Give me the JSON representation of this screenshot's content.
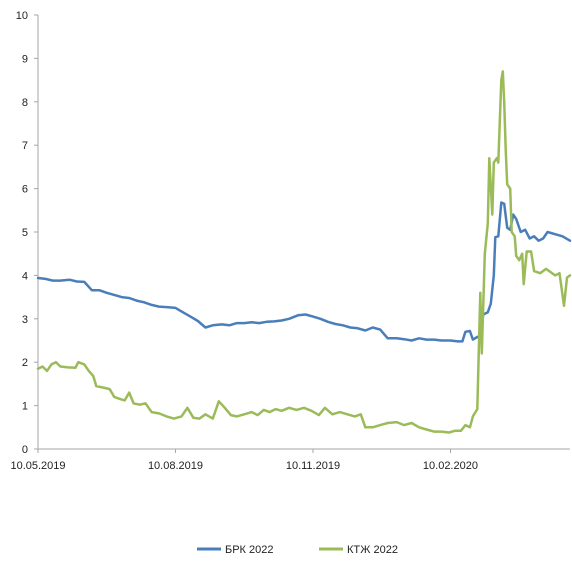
{
  "chart_data": {
    "type": "line",
    "title": "",
    "xlabel": "",
    "ylabel": "",
    "ylim": [
      0,
      10
    ],
    "yticks": [
      "0",
      "1",
      "2",
      "3",
      "4",
      "5",
      "6",
      "7",
      "8",
      "9",
      "10"
    ],
    "x_range": [
      "2019-05-10",
      "2020-04-30"
    ],
    "xticks": [
      {
        "date": "2019-05-10",
        "label": "10.05.2019"
      },
      {
        "date": "2019-08-10",
        "label": "10.08.2019"
      },
      {
        "date": "2019-11-10",
        "label": "10.11.2019"
      },
      {
        "date": "2020-02-10",
        "label": "10.02.2020"
      }
    ],
    "grid": false,
    "legend_position": "bottom",
    "series": [
      {
        "name": "БРК 2022",
        "color": "#4a7ebb",
        "points": [
          [
            "2019-05-10",
            3.94
          ],
          [
            "2019-05-15",
            3.92
          ],
          [
            "2019-05-20",
            3.88
          ],
          [
            "2019-05-25",
            3.88
          ],
          [
            "2019-05-31",
            3.9
          ],
          [
            "2019-06-05",
            3.86
          ],
          [
            "2019-06-10",
            3.85
          ],
          [
            "2019-06-15",
            3.66
          ],
          [
            "2019-06-20",
            3.66
          ],
          [
            "2019-06-25",
            3.6
          ],
          [
            "2019-06-30",
            3.55
          ],
          [
            "2019-07-05",
            3.5
          ],
          [
            "2019-07-10",
            3.48
          ],
          [
            "2019-07-15",
            3.42
          ],
          [
            "2019-07-20",
            3.38
          ],
          [
            "2019-07-25",
            3.32
          ],
          [
            "2019-07-30",
            3.28
          ],
          [
            "2019-08-04",
            3.27
          ],
          [
            "2019-08-10",
            3.25
          ],
          [
            "2019-08-15",
            3.15
          ],
          [
            "2019-08-20",
            3.05
          ],
          [
            "2019-08-25",
            2.95
          ],
          [
            "2019-08-30",
            2.8
          ],
          [
            "2019-09-04",
            2.85
          ],
          [
            "2019-09-10",
            2.87
          ],
          [
            "2019-09-15",
            2.85
          ],
          [
            "2019-09-20",
            2.9
          ],
          [
            "2019-09-25",
            2.9
          ],
          [
            "2019-09-30",
            2.92
          ],
          [
            "2019-10-05",
            2.9
          ],
          [
            "2019-10-10",
            2.93
          ],
          [
            "2019-10-15",
            2.94
          ],
          [
            "2019-10-20",
            2.96
          ],
          [
            "2019-10-25",
            3.0
          ],
          [
            "2019-10-31",
            3.08
          ],
          [
            "2019-11-05",
            3.1
          ],
          [
            "2019-11-10",
            3.05
          ],
          [
            "2019-11-15",
            3.0
          ],
          [
            "2019-11-20",
            2.93
          ],
          [
            "2019-11-25",
            2.88
          ],
          [
            "2019-11-30",
            2.85
          ],
          [
            "2019-12-05",
            2.8
          ],
          [
            "2019-12-10",
            2.78
          ],
          [
            "2019-12-15",
            2.73
          ],
          [
            "2019-12-20",
            2.8
          ],
          [
            "2019-12-25",
            2.75
          ],
          [
            "2019-12-30",
            2.55
          ],
          [
            "2020-01-05",
            2.55
          ],
          [
            "2020-01-10",
            2.53
          ],
          [
            "2020-01-15",
            2.5
          ],
          [
            "2020-01-20",
            2.55
          ],
          [
            "2020-01-25",
            2.52
          ],
          [
            "2020-01-30",
            2.52
          ],
          [
            "2020-02-04",
            2.5
          ],
          [
            "2020-02-10",
            2.5
          ],
          [
            "2020-02-15",
            2.48
          ],
          [
            "2020-02-18",
            2.48
          ],
          [
            "2020-02-20",
            2.7
          ],
          [
            "2020-02-23",
            2.72
          ],
          [
            "2020-02-25",
            2.52
          ],
          [
            "2020-02-28",
            2.58
          ],
          [
            "2020-03-01",
            2.6
          ],
          [
            "2020-03-03",
            3.1
          ],
          [
            "2020-03-06",
            3.15
          ],
          [
            "2020-03-08",
            3.35
          ],
          [
            "2020-03-10",
            4.0
          ],
          [
            "2020-03-11",
            4.88
          ],
          [
            "2020-03-13",
            4.9
          ],
          [
            "2020-03-15",
            5.68
          ],
          [
            "2020-03-17",
            5.65
          ],
          [
            "2020-03-19",
            5.1
          ],
          [
            "2020-03-21",
            5.05
          ],
          [
            "2020-03-23",
            5.4
          ],
          [
            "2020-03-25",
            5.3
          ],
          [
            "2020-03-28",
            5.0
          ],
          [
            "2020-03-31",
            5.05
          ],
          [
            "2020-04-03",
            4.85
          ],
          [
            "2020-04-06",
            4.9
          ],
          [
            "2020-04-09",
            4.8
          ],
          [
            "2020-04-12",
            4.85
          ],
          [
            "2020-04-15",
            5.0
          ],
          [
            "2020-04-20",
            4.95
          ],
          [
            "2020-04-25",
            4.9
          ],
          [
            "2020-04-30",
            4.8
          ]
        ]
      },
      {
        "name": "КТЖ 2022",
        "color": "#9bbb59",
        "points": [
          [
            "2019-05-10",
            1.85
          ],
          [
            "2019-05-13",
            1.9
          ],
          [
            "2019-05-16",
            1.8
          ],
          [
            "2019-05-19",
            1.95
          ],
          [
            "2019-05-22",
            2.0
          ],
          [
            "2019-05-25",
            1.9
          ],
          [
            "2019-05-30",
            1.88
          ],
          [
            "2019-06-04",
            1.87
          ],
          [
            "2019-06-06",
            2.0
          ],
          [
            "2019-06-10",
            1.95
          ],
          [
            "2019-06-13",
            1.8
          ],
          [
            "2019-06-16",
            1.68
          ],
          [
            "2019-06-18",
            1.45
          ],
          [
            "2019-06-22",
            1.42
          ],
          [
            "2019-06-27",
            1.38
          ],
          [
            "2019-06-30",
            1.2
          ],
          [
            "2019-07-04",
            1.15
          ],
          [
            "2019-07-07",
            1.12
          ],
          [
            "2019-07-10",
            1.3
          ],
          [
            "2019-07-13",
            1.05
          ],
          [
            "2019-07-17",
            1.02
          ],
          [
            "2019-07-21",
            1.05
          ],
          [
            "2019-07-25",
            0.85
          ],
          [
            "2019-07-30",
            0.82
          ],
          [
            "2019-08-04",
            0.75
          ],
          [
            "2019-08-09",
            0.7
          ],
          [
            "2019-08-14",
            0.75
          ],
          [
            "2019-08-18",
            0.95
          ],
          [
            "2019-08-22",
            0.72
          ],
          [
            "2019-08-26",
            0.7
          ],
          [
            "2019-08-30",
            0.8
          ],
          [
            "2019-09-04",
            0.7
          ],
          [
            "2019-09-08",
            1.1
          ],
          [
            "2019-09-12",
            0.95
          ],
          [
            "2019-09-16",
            0.78
          ],
          [
            "2019-09-20",
            0.75
          ],
          [
            "2019-09-25",
            0.8
          ],
          [
            "2019-09-30",
            0.85
          ],
          [
            "2019-10-04",
            0.78
          ],
          [
            "2019-10-08",
            0.9
          ],
          [
            "2019-10-12",
            0.85
          ],
          [
            "2019-10-16",
            0.92
          ],
          [
            "2019-10-20",
            0.88
          ],
          [
            "2019-10-25",
            0.95
          ],
          [
            "2019-10-30",
            0.9
          ],
          [
            "2019-11-04",
            0.95
          ],
          [
            "2019-11-09",
            0.88
          ],
          [
            "2019-11-14",
            0.78
          ],
          [
            "2019-11-18",
            0.95
          ],
          [
            "2019-11-23",
            0.8
          ],
          [
            "2019-11-28",
            0.85
          ],
          [
            "2019-12-03",
            0.8
          ],
          [
            "2019-12-08",
            0.75
          ],
          [
            "2019-12-12",
            0.8
          ],
          [
            "2019-12-15",
            0.5
          ],
          [
            "2019-12-20",
            0.5
          ],
          [
            "2019-12-25",
            0.55
          ],
          [
            "2019-12-30",
            0.6
          ],
          [
            "2020-01-05",
            0.62
          ],
          [
            "2020-01-10",
            0.55
          ],
          [
            "2020-01-15",
            0.6
          ],
          [
            "2020-01-20",
            0.5
          ],
          [
            "2020-01-25",
            0.45
          ],
          [
            "2020-01-30",
            0.4
          ],
          [
            "2020-02-04",
            0.4
          ],
          [
            "2020-02-09",
            0.38
          ],
          [
            "2020-02-13",
            0.42
          ],
          [
            "2020-02-17",
            0.42
          ],
          [
            "2020-02-20",
            0.55
          ],
          [
            "2020-02-23",
            0.5
          ],
          [
            "2020-02-25",
            0.75
          ],
          [
            "2020-02-28",
            0.92
          ],
          [
            "2020-03-01",
            3.6
          ],
          [
            "2020-03-02",
            2.2
          ],
          [
            "2020-03-04",
            4.5
          ],
          [
            "2020-03-06",
            5.2
          ],
          [
            "2020-03-07",
            6.7
          ],
          [
            "2020-03-09",
            5.4
          ],
          [
            "2020-03-10",
            6.6
          ],
          [
            "2020-03-12",
            6.7
          ],
          [
            "2020-03-13",
            6.6
          ],
          [
            "2020-03-15",
            8.5
          ],
          [
            "2020-03-16",
            8.7
          ],
          [
            "2020-03-17",
            8.0
          ],
          [
            "2020-03-18",
            6.9
          ],
          [
            "2020-03-19",
            6.1
          ],
          [
            "2020-03-21",
            6.0
          ],
          [
            "2020-03-22",
            5.0
          ],
          [
            "2020-03-24",
            4.9
          ],
          [
            "2020-03-25",
            4.45
          ],
          [
            "2020-03-27",
            4.35
          ],
          [
            "2020-03-29",
            4.5
          ],
          [
            "2020-03-30",
            3.8
          ],
          [
            "2020-04-01",
            4.55
          ],
          [
            "2020-04-04",
            4.55
          ],
          [
            "2020-04-06",
            4.1
          ],
          [
            "2020-04-10",
            4.05
          ],
          [
            "2020-04-14",
            4.15
          ],
          [
            "2020-04-20",
            4.0
          ],
          [
            "2020-04-23",
            4.05
          ],
          [
            "2020-04-26",
            3.3
          ],
          [
            "2020-04-28",
            3.95
          ],
          [
            "2020-04-30",
            4.0
          ]
        ]
      }
    ]
  }
}
